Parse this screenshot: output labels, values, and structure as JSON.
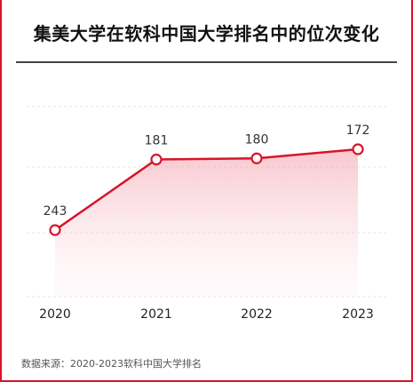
{
  "title": "集美大学在软科中国大学排名中的位次变化",
  "source": "数据来源：2020-2023软科中国大学排名",
  "chart_data": {
    "type": "line",
    "title": "集美大学在软科中国大学排名中的位次变化",
    "categories": [
      "2020",
      "2021",
      "2022",
      "2023"
    ],
    "values": [
      243,
      181,
      180,
      172
    ],
    "xlabel": "",
    "ylabel": "",
    "ylim": [
      110,
      280
    ],
    "grid": true,
    "line_color": "#d8142a",
    "fill_color": "#f7c9d0"
  }
}
